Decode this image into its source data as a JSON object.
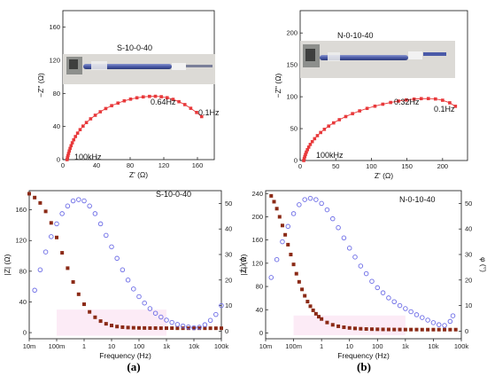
{
  "panels_text": {
    "a": {
      "caption": "(a)"
    },
    "b": {
      "caption": "(b)"
    }
  },
  "colors": {
    "nyquist": "#e8393b",
    "impedance": "#8b2a16",
    "phase": "#6b6be6",
    "fiber": "#4a5aa8"
  },
  "chart_data": [
    {
      "id": "a_nyquist",
      "type": "scatter",
      "title": "S-10-0-40",
      "xlabel": "Z' (Ω)",
      "ylabel": "−Z'' (Ω)",
      "xlim": [
        0,
        180
      ],
      "ylim": [
        0,
        180
      ],
      "xticks": [
        0,
        40,
        80,
        120,
        160
      ],
      "yticks": [
        0,
        40,
        80,
        120,
        160
      ],
      "annotations": [
        {
          "text": "0.64Hz",
          "x": 116,
          "y": 74
        },
        {
          "text": "0.1Hz",
          "x": 166,
          "y": 52
        },
        {
          "text": "100kHz",
          "x": 6,
          "y": 0
        }
      ],
      "series": [
        {
          "marker": "square",
          "color": "#e8393b",
          "x": [
            5,
            5.5,
            6.1,
            6.8,
            7.6,
            8.6,
            9.8,
            11.2,
            12.9,
            15,
            17.5,
            20.5,
            24,
            28,
            33,
            38.5,
            44.5,
            51,
            58,
            65.5,
            73,
            80.5,
            88,
            95.5,
            103,
            110,
            117,
            124,
            131,
            138,
            145,
            152,
            159,
            165
          ],
          "y": [
            0,
            2.3,
            4.8,
            7.5,
            10.4,
            13.5,
            16.8,
            20.3,
            24,
            27.9,
            32,
            36.2,
            40.5,
            44.8,
            49.3,
            53.6,
            57.8,
            61.7,
            65.2,
            68.3,
            71,
            73.1,
            74.7,
            75.8,
            76.4,
            76.5,
            76,
            74.8,
            72.8,
            70,
            66.5,
            62,
            57,
            52
          ]
        }
      ]
    },
    {
      "id": "b_nyquist",
      "type": "scatter",
      "title": "N-0-10-40",
      "xlabel": "Z' (Ω)",
      "ylabel": "−Z'' (Ω)",
      "xlim": [
        0,
        235
      ],
      "ylim": [
        0,
        235
      ],
      "xticks": [
        0,
        50,
        100,
        150,
        200
      ],
      "yticks": [
        0,
        50,
        100,
        150,
        200
      ],
      "annotations": [
        {
          "text": "0.32Hz",
          "x": 158,
          "y": 97
        },
        {
          "text": "0.1Hz",
          "x": 218,
          "y": 85
        },
        {
          "text": "100kHz",
          "x": 7,
          "y": 0
        }
      ],
      "series": [
        {
          "marker": "square",
          "color": "#e8393b",
          "x": [
            5,
            5.7,
            6.5,
            7.5,
            8.7,
            10.2,
            12,
            14.2,
            17,
            20.3,
            24.2,
            28.8,
            34,
            40,
            47,
            55,
            64,
            73.5,
            83.5,
            94,
            105,
            116,
            127,
            138,
            149,
            160,
            170,
            180,
            190,
            200,
            210,
            218
          ],
          "y": [
            0,
            3,
            6.2,
            9.6,
            13.2,
            17,
            21,
            25.2,
            29.6,
            34.2,
            39,
            43.9,
            48.9,
            54,
            59,
            64,
            68.9,
            73.5,
            77.8,
            81.7,
            85.2,
            88.3,
            91,
            93.2,
            95,
            96.3,
            97,
            97.1,
            96.5,
            94.5,
            90.5,
            85
          ]
        }
      ]
    },
    {
      "id": "a_bode",
      "type": "scatter",
      "title": "S-10-0-40",
      "xlabel": "Frequency (Hz)",
      "ylabel": "|Z| (Ω)",
      "y2label": "φ (°)",
      "x_scale": "log",
      "xlim": [
        0.01,
        100000
      ],
      "ylim": [
        -8,
        185
      ],
      "y2lim": [
        -3,
        55
      ],
      "xtick_labels": [
        "10m",
        "100m",
        "1",
        "10",
        "100",
        "1k",
        "10k",
        "100k"
      ],
      "yticks": [
        0,
        40,
        80,
        120,
        160
      ],
      "y2ticks": [
        0,
        10,
        20,
        30,
        40,
        50
      ],
      "series": [
        {
          "name": "|Z|",
          "axis": "left",
          "marker": "square",
          "color": "#8b2a16",
          "x": [
            0.01,
            0.0158,
            0.0251,
            0.0398,
            0.0631,
            0.1,
            0.158,
            0.251,
            0.398,
            0.631,
            1,
            1.58,
            2.51,
            3.98,
            6.31,
            10,
            15.8,
            25.1,
            39.8,
            63.1,
            100,
            158,
            251,
            398,
            631,
            1000,
            1580,
            2510,
            3980,
            6310,
            10000,
            15800,
            25100,
            39800,
            63100,
            100000
          ],
          "y": [
            181,
            176,
            169,
            158,
            143,
            124,
            104,
            84,
            66,
            50,
            37,
            27,
            20,
            15,
            11.5,
            9.3,
            7.9,
            7.1,
            6.6,
            6.3,
            6.1,
            6,
            5.9,
            5.9,
            5.8,
            5.8,
            5.8,
            5.7,
            5.7,
            5.7,
            5.7,
            5.7,
            5.7,
            5.7,
            5.7,
            5.7
          ]
        },
        {
          "name": "φ",
          "axis": "right",
          "marker": "circle",
          "color": "#6b6be6",
          "x": [
            0.0158,
            0.0251,
            0.0398,
            0.0631,
            0.1,
            0.158,
            0.251,
            0.398,
            0.631,
            1,
            1.58,
            2.51,
            3.98,
            6.31,
            10,
            15.8,
            25.1,
            39.8,
            63.1,
            100,
            158,
            251,
            398,
            631,
            1000,
            1580,
            2510,
            3980,
            6310,
            10000,
            15800,
            25100,
            39800,
            63100,
            100000
          ],
          "y": [
            16,
            24,
            31,
            37,
            42,
            46,
            49,
            51,
            51.5,
            51,
            49,
            46,
            42,
            37.5,
            33,
            28.5,
            24,
            20,
            16.5,
            13.5,
            11,
            8.8,
            7,
            5.5,
            4.3,
            3.4,
            2.6,
            2,
            1.6,
            1.3,
            1.5,
            2.5,
            4.2,
            6.5,
            10
          ]
        }
      ]
    },
    {
      "id": "b_bode",
      "type": "scatter",
      "title": "N-0-10-40",
      "xlabel": "Frequency (Hz)",
      "ylabel": "|Z| (Ω)",
      "y2label": "φ (°)",
      "x_scale": "log",
      "xlim": [
        0.01,
        100000
      ],
      "ylim": [
        -10,
        245
      ],
      "y2lim": [
        -3,
        55
      ],
      "xtick_labels": [
        "10m",
        "100m",
        "1",
        "10",
        "100",
        "1k",
        "10k",
        "100k"
      ],
      "yticks": [
        0,
        40,
        80,
        120,
        160,
        200,
        240
      ],
      "y2ticks": [
        0,
        10,
        20,
        30,
        40,
        50
      ],
      "series": [
        {
          "name": "|Z|",
          "axis": "left",
          "marker": "square",
          "color": "#8b2a16",
          "x": [
            0.0158,
            0.02,
            0.0251,
            0.0316,
            0.0398,
            0.0501,
            0.0631,
            0.0794,
            0.1,
            0.126,
            0.158,
            0.2,
            0.251,
            0.316,
            0.398,
            0.501,
            0.631,
            0.794,
            1,
            1.58,
            2.51,
            3.98,
            6.31,
            10,
            15.8,
            25.1,
            39.8,
            63.1,
            100,
            158,
            251,
            398,
            631,
            1000,
            1580,
            2510,
            3980,
            6310,
            10000,
            15800,
            25100,
            39800,
            63100
          ],
          "y": [
            236,
            226,
            214,
            200,
            185,
            169,
            152,
            135,
            118,
            102,
            88,
            75,
            64,
            54,
            46,
            39,
            33,
            28,
            24,
            18,
            14,
            11.5,
            9.8,
            8.6,
            7.8,
            7.2,
            6.8,
            6.5,
            6.3,
            6.1,
            6,
            5.9,
            5.9,
            5.8,
            5.8,
            5.8,
            5.7,
            5.7,
            5.7,
            5.7,
            5.7,
            5.7,
            5.7
          ]
        },
        {
          "name": "φ",
          "axis": "right",
          "marker": "circle",
          "color": "#6b6be6",
          "x": [
            0.0158,
            0.0251,
            0.0398,
            0.0631,
            0.1,
            0.158,
            0.251,
            0.398,
            0.631,
            1,
            1.58,
            2.51,
            3.98,
            6.31,
            10,
            15.8,
            25.1,
            39.8,
            63.1,
            100,
            158,
            251,
            398,
            631,
            1000,
            1580,
            2510,
            3980,
            6310,
            10000,
            15800,
            25100,
            39800,
            50100
          ],
          "y": [
            21,
            28,
            35,
            41,
            46,
            49.5,
            51.5,
            52,
            51.5,
            50,
            47.5,
            44,
            40.5,
            36.5,
            32.5,
            29,
            25.5,
            22.5,
            19.5,
            17,
            15,
            13,
            11.5,
            10,
            8.8,
            7.6,
            6.4,
            5.3,
            4.3,
            3.3,
            2.5,
            2.2,
            3.8,
            6
          ]
        }
      ]
    }
  ]
}
